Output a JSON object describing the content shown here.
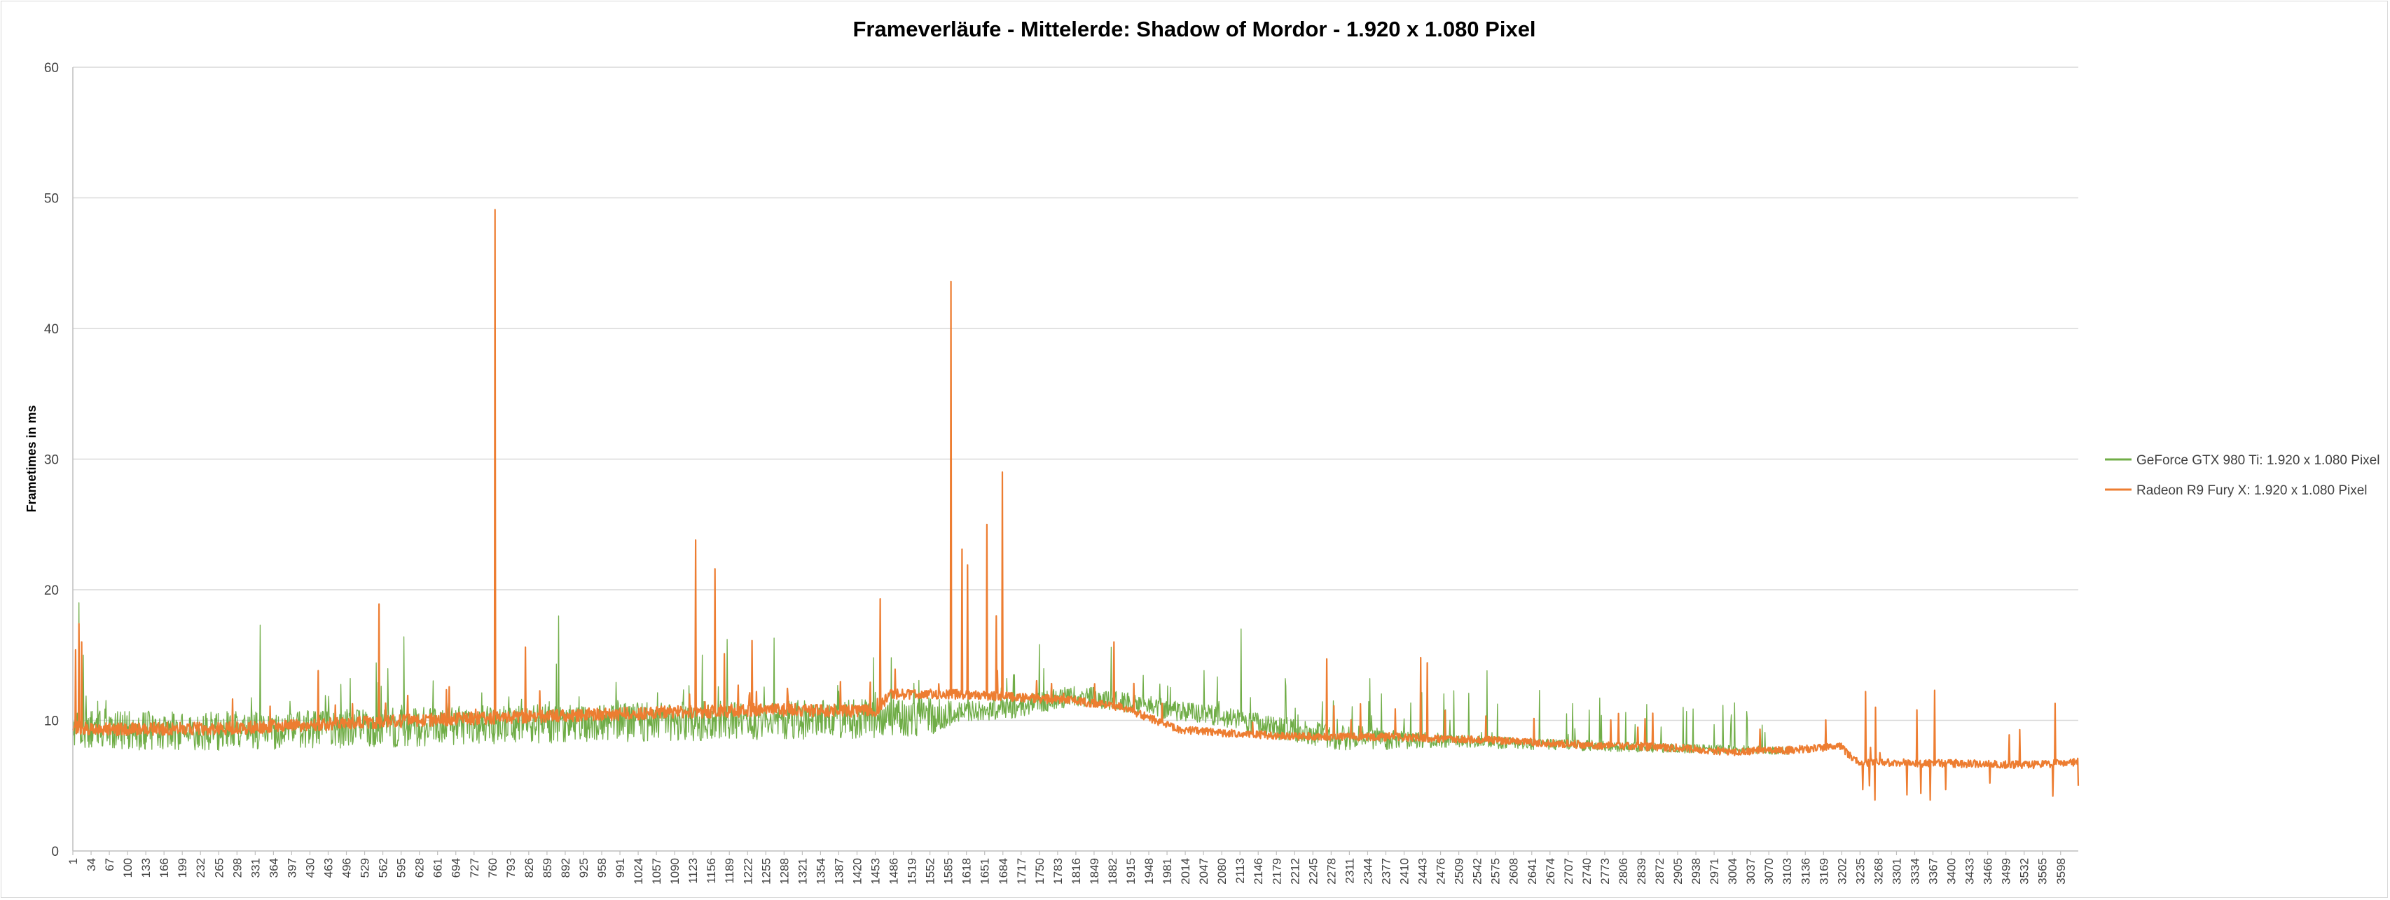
{
  "chart_data": {
    "type": "line",
    "title": "Frameverläufe - Mittelerde: Shadow of Mordor - 1.920 x 1.080 Pixel",
    "xlabel": "",
    "ylabel": "Frametimes in ms",
    "ylim": [
      0,
      60
    ],
    "yticks": [
      0,
      10,
      20,
      30,
      40,
      50,
      60
    ],
    "xlim": [
      1,
      3630
    ],
    "xticks": [
      1,
      34,
      67,
      100,
      133,
      166,
      199,
      232,
      265,
      298,
      331,
      364,
      397,
      430,
      463,
      496,
      529,
      562,
      595,
      628,
      661,
      694,
      727,
      760,
      793,
      826,
      859,
      892,
      925,
      958,
      991,
      1024,
      1057,
      1090,
      1123,
      1156,
      1189,
      1222,
      1255,
      1288,
      1321,
      1354,
      1387,
      1420,
      1453,
      1486,
      1519,
      1552,
      1585,
      1618,
      1651,
      1684,
      1717,
      1750,
      1783,
      1816,
      1849,
      1882,
      1915,
      1948,
      1981,
      2014,
      2047,
      2080,
      2113,
      2146,
      2179,
      2212,
      2245,
      2278,
      2311,
      2344,
      2377,
      2410,
      2443,
      2476,
      2509,
      2542,
      2575,
      2608,
      2641,
      2674,
      2707,
      2740,
      2773,
      2806,
      2839,
      2872,
      2905,
      2938,
      2971,
      3004,
      3037,
      3070,
      3103,
      3136,
      3169,
      3202,
      3235,
      3268,
      3301,
      3334,
      3367,
      3400,
      3433,
      3466,
      3499,
      3532,
      3565,
      3598
    ],
    "grid": true,
    "legend_position": "right",
    "series": [
      {
        "name": "GeForce GTX 980 Ti: 1.920 x 1.080 Pixel",
        "color": "#70ad47",
        "frame_count": 3105,
        "baseline": [
          [
            1,
            9.5
          ],
          [
            200,
            9.3
          ],
          [
            500,
            9.5
          ],
          [
            760,
            9.8
          ],
          [
            1000,
            10.0
          ],
          [
            1300,
            10.2
          ],
          [
            1500,
            10.3
          ],
          [
            1552,
            10.5
          ],
          [
            1700,
            11.0
          ],
          [
            1816,
            12.0
          ],
          [
            1900,
            11.5
          ],
          [
            2000,
            10.8
          ],
          [
            2100,
            10.2
          ],
          [
            2200,
            9.3
          ],
          [
            2300,
            8.8
          ],
          [
            2400,
            8.6
          ],
          [
            2500,
            8.5
          ],
          [
            2600,
            8.3
          ],
          [
            2750,
            8.1
          ],
          [
            2900,
            7.9
          ],
          [
            3105,
            7.7
          ]
        ],
        "noise": [
          [
            1,
            1.5
          ],
          [
            1552,
            1.5
          ],
          [
            1600,
            0.8
          ],
          [
            2100,
            0.8
          ],
          [
            2300,
            1.0
          ],
          [
            2500,
            0.5
          ],
          [
            3105,
            0.3
          ]
        ],
        "spikes": [
          [
            12,
            19.0
          ],
          [
            20,
            15.0
          ],
          [
            340,
            17.3
          ],
          [
            550,
            14.4
          ],
          [
            600,
            16.4
          ],
          [
            790,
            11.8
          ],
          [
            880,
            18.0
          ],
          [
            1140,
            15.0
          ],
          [
            1185,
            16.2
          ],
          [
            1270,
            16.3
          ],
          [
            1450,
            14.8
          ],
          [
            1482,
            14.8
          ],
          [
            1750,
            15.8
          ],
          [
            1880,
            15.6
          ],
          [
            2115,
            17.0
          ],
          [
            2195,
            13.2
          ],
          [
            2348,
            13.2
          ],
          [
            2560,
            13.8
          ],
          [
            2655,
            12.3
          ],
          [
            2915,
            11.0
          ]
        ]
      },
      {
        "name": "Radeon R9 Fury X: 1.920 x 1.080 Pixel",
        "color": "#ed7d31",
        "frame_count": 3630,
        "baseline": [
          [
            1,
            9.5
          ],
          [
            40,
            9.3
          ],
          [
            300,
            9.4
          ],
          [
            500,
            9.8
          ],
          [
            760,
            10.2
          ],
          [
            1000,
            10.5
          ],
          [
            1250,
            10.8
          ],
          [
            1453,
            10.7
          ],
          [
            1480,
            12.0
          ],
          [
            1600,
            12.0
          ],
          [
            1700,
            11.8
          ],
          [
            1816,
            11.5
          ],
          [
            1900,
            11.0
          ],
          [
            1960,
            10.0
          ],
          [
            2000,
            9.3
          ],
          [
            2100,
            9.0
          ],
          [
            2200,
            8.8
          ],
          [
            2400,
            8.7
          ],
          [
            2550,
            8.5
          ],
          [
            2700,
            8.2
          ],
          [
            2900,
            7.9
          ],
          [
            3000,
            7.6
          ],
          [
            3100,
            7.7
          ],
          [
            3200,
            8.0
          ],
          [
            3230,
            6.8
          ],
          [
            3400,
            6.7
          ],
          [
            3550,
            6.6
          ],
          [
            3630,
            6.8
          ]
        ],
        "noise": [
          [
            1,
            0.5
          ],
          [
            1453,
            0.5
          ],
          [
            1480,
            0.4
          ],
          [
            1960,
            0.3
          ],
          [
            3630,
            0.3
          ]
        ],
        "spikes": [
          [
            6,
            15.4
          ],
          [
            12,
            17.4
          ],
          [
            17,
            16.0
          ],
          [
            445,
            13.8
          ],
          [
            555,
            18.9
          ],
          [
            765,
            49.1
          ],
          [
            820,
            15.6
          ],
          [
            1128,
            23.8
          ],
          [
            1163,
            21.6
          ],
          [
            1180,
            15.1
          ],
          [
            1230,
            16.1
          ],
          [
            1462,
            19.3
          ],
          [
            1590,
            43.6
          ],
          [
            1610,
            23.1
          ],
          [
            1620,
            21.9
          ],
          [
            1655,
            25.0
          ],
          [
            1672,
            18.0
          ],
          [
            1683,
            29.0
          ],
          [
            1885,
            16.0
          ],
          [
            2270,
            14.7
          ],
          [
            2440,
            14.8
          ],
          [
            2452,
            14.4
          ],
          [
            3245,
            12.2
          ],
          [
            3263,
            11.0
          ],
          [
            3338,
            10.8
          ],
          [
            3370,
            12.3
          ],
          [
            3588,
            11.3
          ]
        ],
        "dips": [
          [
            3240,
            4.7
          ],
          [
            3252,
            5.0
          ],
          [
            3262,
            3.9
          ],
          [
            3320,
            4.3
          ],
          [
            3345,
            4.4
          ],
          [
            3362,
            3.9
          ],
          [
            3390,
            4.7
          ],
          [
            3470,
            5.2
          ],
          [
            3584,
            4.2
          ],
          [
            3630,
            5.0
          ]
        ]
      }
    ]
  }
}
